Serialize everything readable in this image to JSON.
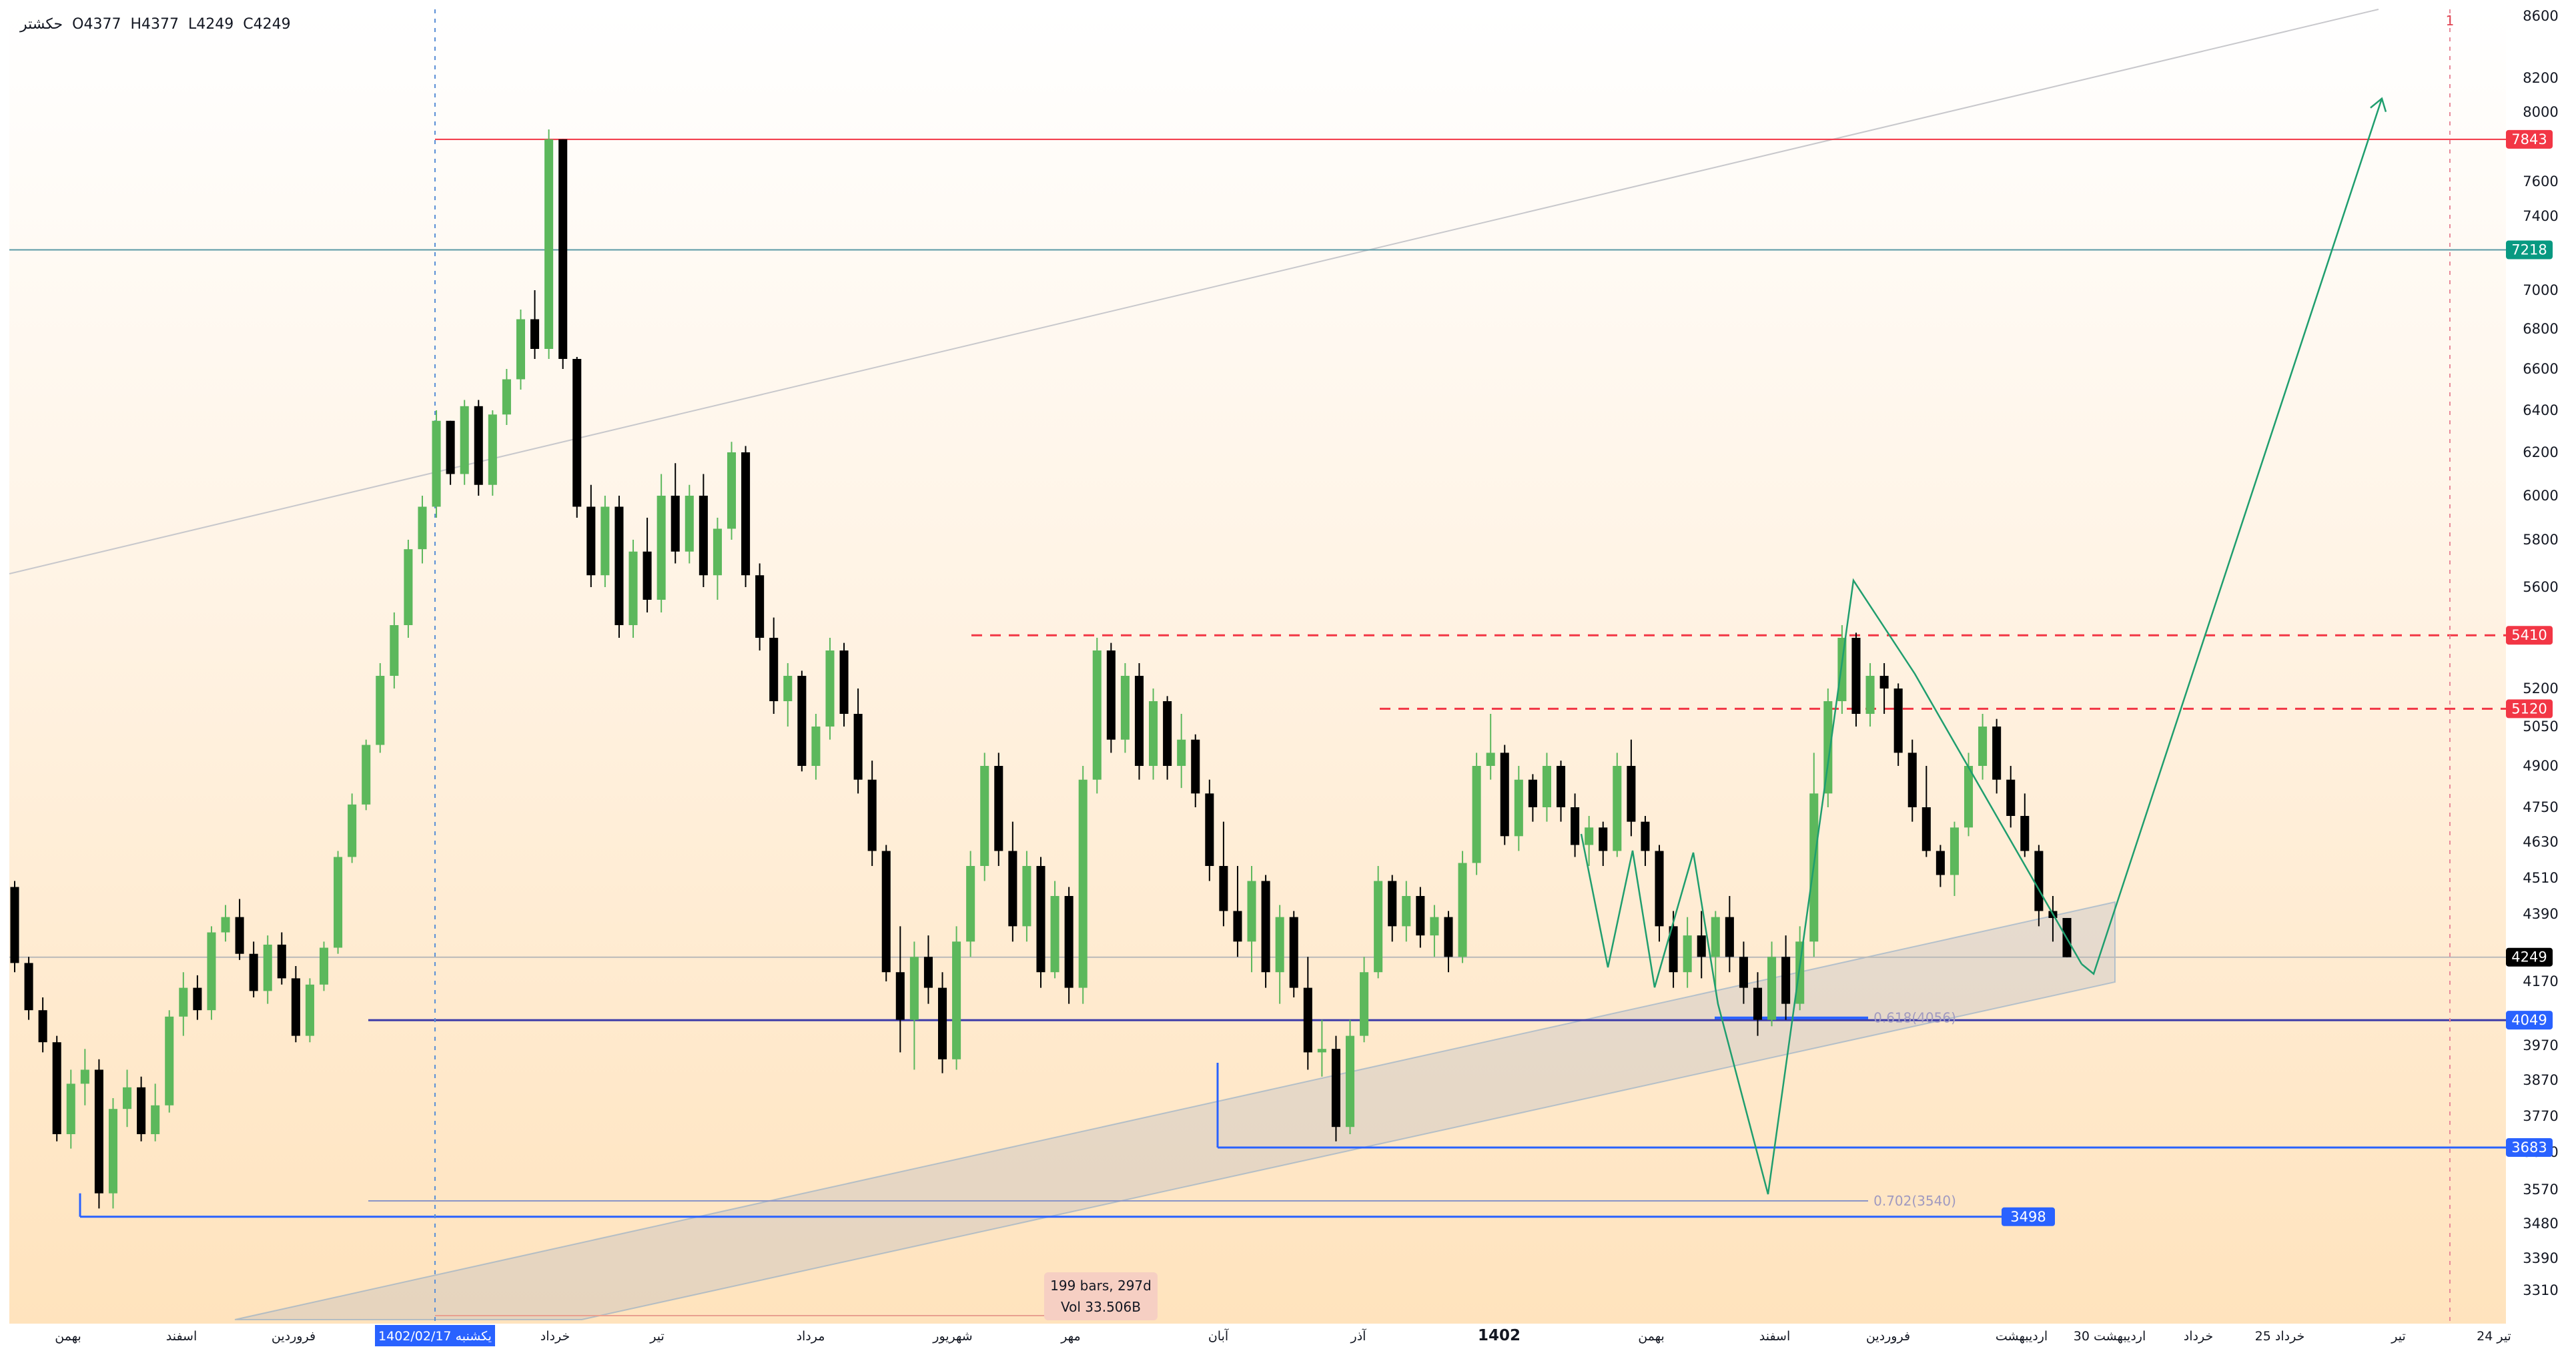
{
  "ohlc": {
    "name": "حکشتر",
    "open": "O4377",
    "high": "H4377",
    "low": "L4249",
    "close": "C4249"
  },
  "measure": {
    "bars": "199 bars, 297d",
    "vol": "Vol 33.506B"
  },
  "chart_data": {
    "type": "candlestick",
    "title": "",
    "ylim": [
      3230,
      8600
    ],
    "y_ticks": [
      8600,
      8200,
      8000,
      7600,
      7400,
      7000,
      6800,
      6600,
      6400,
      6200,
      6000,
      5800,
      5600,
      5200,
      5050,
      4900,
      4750,
      4630,
      4510,
      4390,
      4170,
      3970,
      3870,
      3770,
      3670,
      3570,
      3480,
      3390,
      3310
    ],
    "x_ticks": [
      {
        "label": "بهمن"
      },
      {
        "label": "اسفند"
      },
      {
        "label": "فروردین"
      },
      {
        "label": "1402/02/17 یکشنبه",
        "highlight": true
      },
      {
        "label": "خرداد"
      },
      {
        "label": "تیر"
      },
      {
        "label": "مرداد"
      },
      {
        "label": "شهریور"
      },
      {
        "label": "مهر"
      },
      {
        "label": "آبان"
      },
      {
        "label": "آذر"
      },
      {
        "label": "1402",
        "bold": true
      },
      {
        "label": "بهمن"
      },
      {
        "label": "اسفند"
      },
      {
        "label": "فروردین"
      },
      {
        "label": "اردیبهشت"
      },
      {
        "label": "30 اردیبهشت"
      },
      {
        "label": "خرداد"
      },
      {
        "label": "25 خرداد"
      },
      {
        "label": "تیر"
      },
      {
        "label": "24 تیر"
      }
    ],
    "price_labels": [
      {
        "value": 7843,
        "color": "#f23645",
        "style": "solid"
      },
      {
        "value": 7218,
        "color": "#089981",
        "style": "solid"
      },
      {
        "value": 5410,
        "color": "#f23645",
        "style": "dashed"
      },
      {
        "value": 5120,
        "color": "#f23645",
        "style": "dashed"
      },
      {
        "value": 4249,
        "color": "#000000",
        "style": "current"
      },
      {
        "value": 4049,
        "color": "#2962ff",
        "style": "solid"
      },
      {
        "value": 3683,
        "color": "#2962ff",
        "style": "solid"
      },
      {
        "value": 3498,
        "color": "#2962ff",
        "style": "solid"
      }
    ],
    "fib_labels": [
      {
        "text": "0.618(4056)",
        "value": 4056
      },
      {
        "text": "0.702(3540)",
        "value": 3540
      }
    ],
    "last_price": 4249,
    "projection_target": 8080,
    "marker_label": "1",
    "colors": {
      "up": "#5cb85c",
      "down": "#000000",
      "resistance": "#f23645",
      "support": "#2962ff",
      "zigzag": "#1f9e6e"
    },
    "candles": [
      [
        4480,
        4500,
        4200,
        4230
      ],
      [
        4230,
        4250,
        4050,
        4080
      ],
      [
        4080,
        4120,
        3950,
        3980
      ],
      [
        3980,
        4000,
        3700,
        3720
      ],
      [
        3720,
        3900,
        3680,
        3860
      ],
      [
        3860,
        3960,
        3800,
        3900
      ],
      [
        3900,
        3930,
        3520,
        3560
      ],
      [
        3560,
        3820,
        3520,
        3790
      ],
      [
        3790,
        3900,
        3740,
        3850
      ],
      [
        3850,
        3880,
        3700,
        3720
      ],
      [
        3720,
        3860,
        3700,
        3800
      ],
      [
        3800,
        4080,
        3780,
        4060
      ],
      [
        4060,
        4200,
        4000,
        4150
      ],
      [
        4150,
        4190,
        4050,
        4080
      ],
      [
        4080,
        4350,
        4050,
        4330
      ],
      [
        4330,
        4420,
        4300,
        4380
      ],
      [
        4380,
        4440,
        4240,
        4260
      ],
      [
        4260,
        4300,
        4120,
        4140
      ],
      [
        4140,
        4320,
        4100,
        4290
      ],
      [
        4290,
        4330,
        4160,
        4180
      ],
      [
        4180,
        4220,
        3980,
        4000
      ],
      [
        4000,
        4180,
        3980,
        4160
      ],
      [
        4160,
        4300,
        4140,
        4280
      ],
      [
        4280,
        4600,
        4260,
        4580
      ],
      [
        4580,
        4800,
        4560,
        4760
      ],
      [
        4760,
        5000,
        4740,
        4980
      ],
      [
        4980,
        5300,
        4950,
        5250
      ],
      [
        5250,
        5500,
        5200,
        5450
      ],
      [
        5450,
        5800,
        5400,
        5760
      ],
      [
        5760,
        6000,
        5700,
        5950
      ],
      [
        5950,
        6400,
        5900,
        6350
      ],
      [
        6350,
        6350,
        6050,
        6100
      ],
      [
        6100,
        6450,
        6050,
        6420
      ],
      [
        6420,
        6450,
        6000,
        6050
      ],
      [
        6050,
        6400,
        6000,
        6380
      ],
      [
        6380,
        6600,
        6330,
        6550
      ],
      [
        6550,
        6900,
        6500,
        6850
      ],
      [
        6850,
        7000,
        6650,
        6700
      ],
      [
        6700,
        7900,
        6650,
        7843
      ],
      [
        7843,
        7843,
        6600,
        6650
      ],
      [
        6650,
        6660,
        5900,
        5950
      ],
      [
        5950,
        6050,
        5600,
        5650
      ],
      [
        5650,
        6000,
        5600,
        5950
      ],
      [
        5950,
        6000,
        5400,
        5450
      ],
      [
        5450,
        5800,
        5400,
        5750
      ],
      [
        5750,
        5900,
        5500,
        5550
      ],
      [
        5550,
        6100,
        5500,
        6000
      ],
      [
        6000,
        6150,
        5700,
        5750
      ],
      [
        5750,
        6050,
        5700,
        6000
      ],
      [
        6000,
        6100,
        5600,
        5650
      ],
      [
        5650,
        5900,
        5550,
        5850
      ],
      [
        5850,
        6250,
        5800,
        6200
      ],
      [
        6200,
        6230,
        5600,
        5650
      ],
      [
        5650,
        5700,
        5350,
        5400
      ],
      [
        5400,
        5480,
        5100,
        5150
      ],
      [
        5150,
        5300,
        5050,
        5250
      ],
      [
        5250,
        5270,
        4880,
        4900
      ],
      [
        4900,
        5100,
        4850,
        5050
      ],
      [
        5050,
        5400,
        5000,
        5350
      ],
      [
        5350,
        5380,
        5050,
        5100
      ],
      [
        5100,
        5200,
        4800,
        4850
      ],
      [
        4850,
        4920,
        4550,
        4600
      ],
      [
        4600,
        4620,
        4170,
        4200
      ],
      [
        4200,
        4350,
        3950,
        4050
      ],
      [
        4050,
        4300,
        3900,
        4250
      ],
      [
        4250,
        4320,
        4100,
        4150
      ],
      [
        4150,
        4200,
        3890,
        3930
      ],
      [
        3930,
        4350,
        3900,
        4300
      ],
      [
        4300,
        4600,
        4250,
        4550
      ],
      [
        4550,
        4950,
        4500,
        4900
      ],
      [
        4900,
        4950,
        4550,
        4600
      ],
      [
        4600,
        4700,
        4300,
        4350
      ],
      [
        4350,
        4600,
        4300,
        4550
      ],
      [
        4550,
        4580,
        4150,
        4200
      ],
      [
        4200,
        4500,
        4180,
        4450
      ],
      [
        4450,
        4480,
        4100,
        4150
      ],
      [
        4150,
        4900,
        4100,
        4850
      ],
      [
        4850,
        5400,
        4800,
        5350
      ],
      [
        5350,
        5380,
        4950,
        5000
      ],
      [
        5000,
        5300,
        4950,
        5250
      ],
      [
        5250,
        5300,
        4850,
        4900
      ],
      [
        4900,
        5200,
        4850,
        5150
      ],
      [
        5150,
        5170,
        4850,
        4900
      ],
      [
        4900,
        5100,
        4820,
        5000
      ],
      [
        5000,
        5020,
        4750,
        4800
      ],
      [
        4800,
        4850,
        4500,
        4550
      ],
      [
        4550,
        4700,
        4350,
        4400
      ],
      [
        4400,
        4550,
        4250,
        4300
      ],
      [
        4300,
        4550,
        4200,
        4500
      ],
      [
        4500,
        4520,
        4150,
        4200
      ],
      [
        4200,
        4420,
        4100,
        4380
      ],
      [
        4380,
        4400,
        4120,
        4150
      ],
      [
        4150,
        4250,
        3900,
        3950
      ],
      [
        3950,
        4050,
        3880,
        3960
      ],
      [
        3960,
        4000,
        3700,
        3740
      ],
      [
        3740,
        4050,
        3720,
        4000
      ],
      [
        4000,
        4250,
        3980,
        4200
      ],
      [
        4200,
        4550,
        4180,
        4500
      ],
      [
        4500,
        4520,
        4300,
        4350
      ],
      [
        4350,
        4500,
        4300,
        4450
      ],
      [
        4450,
        4480,
        4280,
        4320
      ],
      [
        4320,
        4420,
        4250,
        4380
      ],
      [
        4380,
        4400,
        4200,
        4250
      ],
      [
        4250,
        4600,
        4230,
        4560
      ],
      [
        4560,
        4950,
        4520,
        4900
      ],
      [
        4900,
        5100,
        4850,
        4950
      ],
      [
        4950,
        4980,
        4620,
        4650
      ],
      [
        4650,
        4900,
        4600,
        4850
      ],
      [
        4850,
        4870,
        4700,
        4750
      ],
      [
        4750,
        4950,
        4700,
        4900
      ],
      [
        4900,
        4920,
        4700,
        4750
      ],
      [
        4750,
        4800,
        4580,
        4620
      ],
      [
        4620,
        4720,
        4550,
        4680
      ],
      [
        4680,
        4700,
        4550,
        4600
      ],
      [
        4600,
        4950,
        4580,
        4900
      ],
      [
        4900,
        5000,
        4650,
        4700
      ],
      [
        4700,
        4720,
        4550,
        4600
      ],
      [
        4600,
        4620,
        4300,
        4350
      ],
      [
        4350,
        4400,
        4150,
        4200
      ],
      [
        4200,
        4380,
        4150,
        4320
      ],
      [
        4320,
        4400,
        4180,
        4250
      ],
      [
        4250,
        4400,
        4150,
        4380
      ],
      [
        4380,
        4450,
        4200,
        4250
      ],
      [
        4250,
        4300,
        4100,
        4150
      ],
      [
        4150,
        4200,
        4000,
        4050
      ],
      [
        4050,
        4300,
        4030,
        4250
      ],
      [
        4250,
        4320,
        4050,
        4100
      ],
      [
        4100,
        4350,
        4080,
        4300
      ],
      [
        4300,
        4950,
        4250,
        4800
      ],
      [
        4800,
        5200,
        4750,
        5150
      ],
      [
        5150,
        5450,
        5100,
        5400
      ],
      [
        5400,
        5420,
        5050,
        5100
      ],
      [
        5100,
        5300,
        5050,
        5250
      ],
      [
        5250,
        5300,
        5100,
        5200
      ],
      [
        5200,
        5220,
        4900,
        4950
      ],
      [
        4950,
        5000,
        4700,
        4750
      ],
      [
        4750,
        4900,
        4580,
        4600
      ],
      [
        4600,
        4620,
        4480,
        4520
      ],
      [
        4520,
        4700,
        4450,
        4680
      ],
      [
        4680,
        4950,
        4650,
        4900
      ],
      [
        4900,
        5100,
        4850,
        5050
      ],
      [
        5050,
        5080,
        4800,
        4850
      ],
      [
        4850,
        4900,
        4680,
        4720
      ],
      [
        4720,
        4800,
        4580,
        4600
      ],
      [
        4600,
        4620,
        4350,
        4400
      ],
      [
        4400,
        4450,
        4300,
        4377
      ],
      [
        4377,
        4377,
        4249,
        4249
      ]
    ]
  }
}
